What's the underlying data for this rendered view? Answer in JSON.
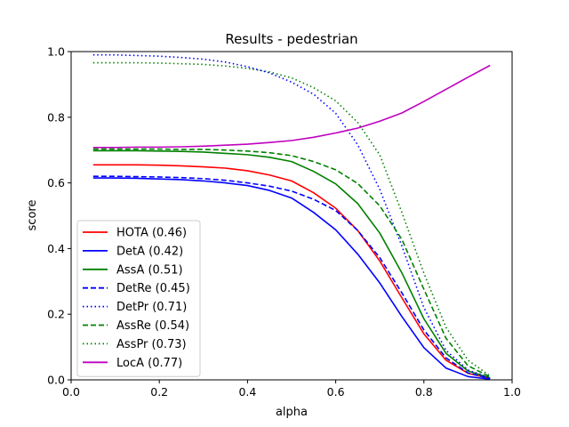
{
  "chart_data": {
    "type": "line",
    "title": "Results - pedestrian",
    "xlabel": "alpha",
    "ylabel": "score",
    "xlim": [
      0.0,
      1.0
    ],
    "ylim": [
      0.0,
      1.0
    ],
    "xticks": [
      "0.0",
      "0.2",
      "0.4",
      "0.6",
      "0.8",
      "1.0"
    ],
    "yticks": [
      "0.0",
      "0.2",
      "0.4",
      "0.6",
      "0.8",
      "1.0"
    ],
    "grid": false,
    "legend_position": "lower-left",
    "x": [
      0.05,
      0.1,
      0.15,
      0.2,
      0.25,
      0.3,
      0.35,
      0.4,
      0.45,
      0.5,
      0.55,
      0.6,
      0.65,
      0.7,
      0.75,
      0.8,
      0.85,
      0.9,
      0.95
    ],
    "series": [
      {
        "name": "HOTA (0.46)",
        "color": "#ff0000",
        "dash": "solid",
        "values": [
          0.655,
          0.655,
          0.655,
          0.654,
          0.652,
          0.649,
          0.645,
          0.637,
          0.624,
          0.606,
          0.57,
          0.523,
          0.455,
          0.362,
          0.25,
          0.14,
          0.06,
          0.02,
          0.004
        ]
      },
      {
        "name": "DetA (0.42)",
        "color": "#0000ff",
        "dash": "solid",
        "values": [
          0.615,
          0.615,
          0.614,
          0.612,
          0.61,
          0.606,
          0.6,
          0.592,
          0.577,
          0.554,
          0.51,
          0.457,
          0.383,
          0.295,
          0.193,
          0.098,
          0.036,
          0.01,
          0.002
        ]
      },
      {
        "name": "AssA (0.51)",
        "color": "#008000",
        "dash": "solid",
        "values": [
          0.698,
          0.698,
          0.698,
          0.697,
          0.696,
          0.694,
          0.69,
          0.686,
          0.678,
          0.665,
          0.635,
          0.597,
          0.537,
          0.447,
          0.326,
          0.186,
          0.081,
          0.027,
          0.006
        ]
      },
      {
        "name": "DetRe (0.45)",
        "color": "#0000ff",
        "dash": "dashed",
        "values": [
          0.62,
          0.62,
          0.619,
          0.618,
          0.616,
          0.613,
          0.608,
          0.6,
          0.59,
          0.575,
          0.55,
          0.516,
          0.455,
          0.372,
          0.265,
          0.152,
          0.067,
          0.021,
          0.004
        ]
      },
      {
        "name": "DetPr (0.71)",
        "color": "#0000ff",
        "dash": "dotted",
        "values": [
          0.99,
          0.99,
          0.988,
          0.986,
          0.982,
          0.977,
          0.968,
          0.954,
          0.935,
          0.907,
          0.87,
          0.812,
          0.716,
          0.58,
          0.408,
          0.22,
          0.09,
          0.03,
          0.006
        ]
      },
      {
        "name": "AssRe (0.54)",
        "color": "#008000",
        "dash": "dashed",
        "values": [
          0.703,
          0.703,
          0.703,
          0.703,
          0.702,
          0.702,
          0.7,
          0.697,
          0.692,
          0.683,
          0.665,
          0.64,
          0.598,
          0.53,
          0.428,
          0.276,
          0.127,
          0.043,
          0.009
        ]
      },
      {
        "name": "AssPr (0.73)",
        "color": "#008000",
        "dash": "dotted",
        "values": [
          0.966,
          0.966,
          0.966,
          0.965,
          0.963,
          0.961,
          0.956,
          0.949,
          0.938,
          0.92,
          0.89,
          0.85,
          0.784,
          0.685,
          0.51,
          0.325,
          0.16,
          0.06,
          0.012
        ]
      },
      {
        "name": "LocA (0.77)",
        "color": "#bf00bf",
        "dash": "solid",
        "values": [
          0.708,
          0.708,
          0.709,
          0.709,
          0.71,
          0.712,
          0.715,
          0.718,
          0.723,
          0.729,
          0.739,
          0.752,
          0.767,
          0.788,
          0.813,
          0.848,
          0.885,
          0.922,
          0.958
        ]
      }
    ]
  }
}
